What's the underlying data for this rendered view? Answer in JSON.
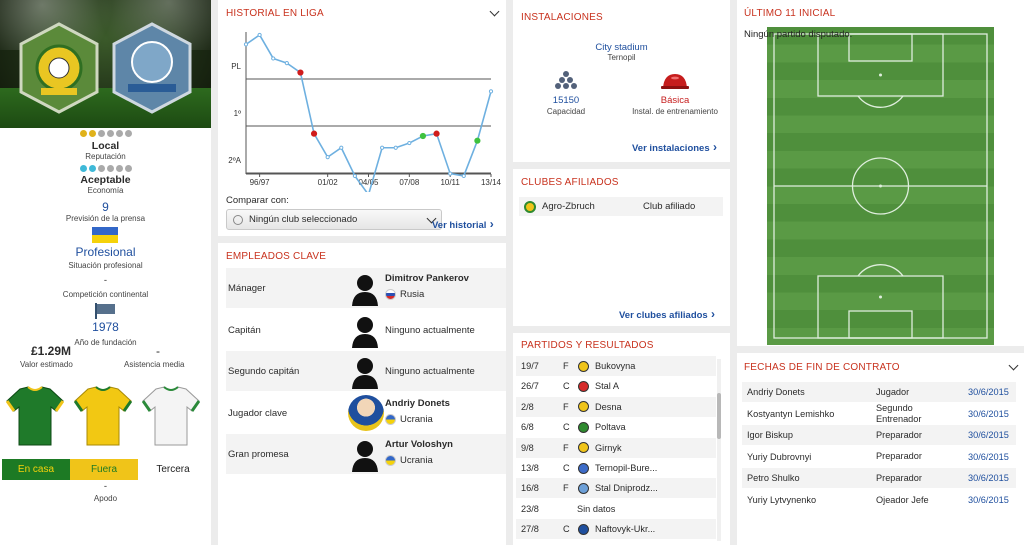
{
  "left": {
    "reputation": {
      "label": "Local",
      "caption": "Reputación",
      "filled": 2,
      "total": 6
    },
    "economy": {
      "label": "Aceptable",
      "caption": "Economía",
      "filled": 2,
      "total": 6
    },
    "press_prediction": {
      "value": "9",
      "caption": "Previsión de la prensa"
    },
    "professional": {
      "value": "Profesional",
      "caption": "Situación profesional"
    },
    "continental": {
      "caption": "Competición continental",
      "value": "-"
    },
    "founded": {
      "value": "1978",
      "caption": "Año de fundación"
    },
    "value_estimate": {
      "value": "£1.29M",
      "caption": "Valor estimado"
    },
    "avg_attendance": {
      "value": "-",
      "caption": "Asistencia media"
    },
    "kits": {
      "home": "En casa",
      "away": "Fuera",
      "third": "Tercera"
    },
    "nickname": {
      "value": "-",
      "caption": "Apodo"
    }
  },
  "history": {
    "title": "HISTORIAL EN LIGA",
    "y_ticks": [
      "PL",
      "1º",
      "2ºA"
    ],
    "x_ticks": [
      "96/97",
      "01/02",
      "04/05",
      "07/08",
      "10/11",
      "13/14"
    ],
    "compare_label": "Comparar con:",
    "select_value": "Ningún club seleccionado",
    "link": "Ver historial"
  },
  "chart_data": {
    "type": "line",
    "title": "HISTORIAL EN LIGA",
    "y_categories": [
      "PL",
      "1º",
      "2ºA"
    ],
    "x_labels": [
      "96/97",
      "01/02",
      "04/05",
      "07/08",
      "10/11",
      "13/14"
    ],
    "points": [
      {
        "x": "95/96",
        "y": 0.05,
        "mark": null
      },
      {
        "x": "96/97",
        "y": -0.15,
        "mark": null
      },
      {
        "x": "97/98",
        "y": 0.35,
        "mark": null
      },
      {
        "x": "98/99",
        "y": 0.45,
        "mark": null
      },
      {
        "x": "99/00",
        "y": 0.65,
        "mark": "red"
      },
      {
        "x": "00/01",
        "y": 1.95,
        "mark": "red"
      },
      {
        "x": "01/02",
        "y": 2.45,
        "mark": null
      },
      {
        "x": "02/03",
        "y": 2.25,
        "mark": null
      },
      {
        "x": "03/04",
        "y": 2.85,
        "mark": null
      },
      {
        "x": "04/05",
        "y": 3.25,
        "mark": null
      },
      {
        "x": "05/06",
        "y": 2.25,
        "mark": null
      },
      {
        "x": "06/07",
        "y": 2.25,
        "mark": null
      },
      {
        "x": "07/08",
        "y": 2.15,
        "mark": null
      },
      {
        "x": "08/09",
        "y": 2.0,
        "mark": "green"
      },
      {
        "x": "09/10",
        "y": 1.95,
        "mark": "red"
      },
      {
        "x": "10/11",
        "y": 2.8,
        "mark": null
      },
      {
        "x": "11/12",
        "y": 2.85,
        "mark": null
      },
      {
        "x": "12/13",
        "y": 2.1,
        "mark": "green"
      },
      {
        "x": "13/14",
        "y": 1.05,
        "mark": null
      }
    ],
    "colors": {
      "line": "#6eb0e0",
      "relegation": "#d01c1c",
      "promotion": "#3fc23f"
    }
  },
  "staff": {
    "title": "EMPLEADOS CLAVE",
    "rows": [
      {
        "role": "Mánager",
        "name": "Dimitrov Pankerov",
        "detail": "Rusia",
        "flag": "russia-flag-icon"
      },
      {
        "role": "Capitán",
        "name": "",
        "detail": "Ninguno actualmente",
        "flag": ""
      },
      {
        "role": "Segundo capitán",
        "name": "",
        "detail": "Ninguno actualmente",
        "flag": ""
      },
      {
        "role": "Jugador clave",
        "name": "Andriy Donets",
        "detail": "Ucrania",
        "flag": "ukraine-flag-icon"
      },
      {
        "role": "Gran promesa",
        "name": "Artur Voloshyn",
        "detail": "Ucrania",
        "flag": "ukraine-flag-icon"
      }
    ]
  },
  "facilities": {
    "title": "INSTALACIONES",
    "stadium": "City stadium",
    "city": "Ternopil",
    "capacity_value": "15150",
    "capacity_caption": "Capacidad",
    "training_value": "Básica",
    "training_caption": "Instal. de entrenamiento",
    "link": "Ver instalaciones"
  },
  "affiliates": {
    "title": "CLUBES AFILIADOS",
    "rows": [
      {
        "club": "Agro-Zbruch",
        "type": "Club afiliado"
      }
    ],
    "link": "Ver clubes afiliados"
  },
  "matches": {
    "title": "PARTIDOS Y RESULTADOS",
    "rows": [
      {
        "date": "19/7",
        "comp": "F",
        "team": "Bukovyna"
      },
      {
        "date": "26/7",
        "comp": "C",
        "team": "Stal A"
      },
      {
        "date": "2/8",
        "comp": "F",
        "team": "Desna"
      },
      {
        "date": "6/8",
        "comp": "C",
        "team": "Poltava"
      },
      {
        "date": "9/8",
        "comp": "F",
        "team": "Girnyk"
      },
      {
        "date": "13/8",
        "comp": "C",
        "team": "Ternopil-Bure..."
      },
      {
        "date": "16/8",
        "comp": "F",
        "team": "Stal Dniprodz..."
      },
      {
        "date": "23/8",
        "comp": "",
        "team": "Sin datos"
      },
      {
        "date": "27/8",
        "comp": "C",
        "team": "Naftovyk-Ukr..."
      }
    ]
  },
  "lineup": {
    "title": "ÚLTIMO 11 INICIAL",
    "empty": "Ningún partido disputado."
  },
  "contracts": {
    "title": "FECHAS DE FIN DE CONTRATO",
    "rows": [
      {
        "name": "Andriy Donets",
        "role": "Jugador",
        "date": "30/6/2015"
      },
      {
        "name": "Kostyantyn Lemishko",
        "role": "Segundo Entrenador",
        "date": "30/6/2015"
      },
      {
        "name": "Igor Biskup",
        "role": "Preparador",
        "date": "30/6/2015"
      },
      {
        "name": "Yuriy Dubrovnyi",
        "role": "Preparador",
        "date": "30/6/2015"
      },
      {
        "name": "Petro Shulko",
        "role": "Preparador",
        "date": "30/6/2015"
      },
      {
        "name": "Yuriy Lytvynenko",
        "role": "Ojeador Jefe",
        "date": "30/6/2015"
      }
    ]
  }
}
